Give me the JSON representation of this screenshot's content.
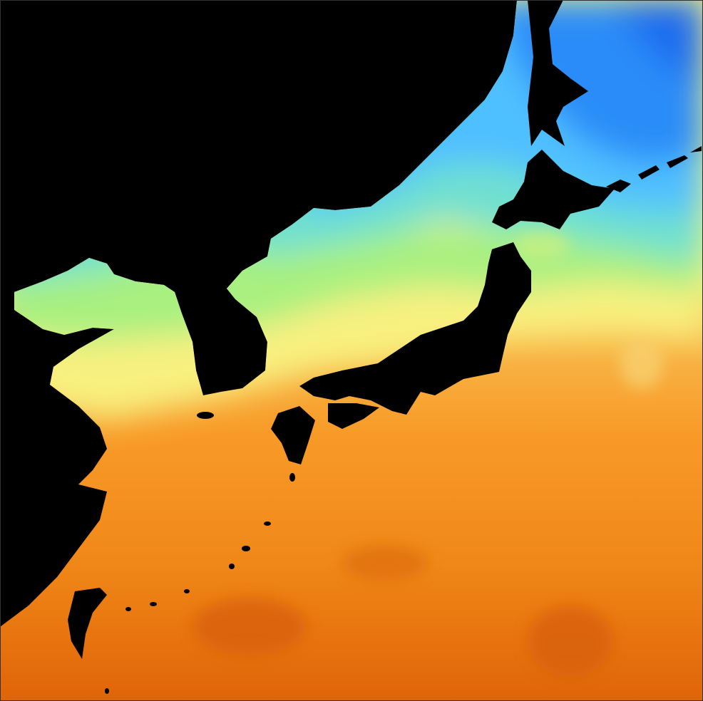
{
  "map": {
    "type": "sea-surface-temperature",
    "land_color": "#000000",
    "palette": {
      "coldest": "#1a6cf0",
      "cold": "#3aa8ff",
      "cool": "#70e0f0",
      "mild": "#90f080",
      "warm": "#f8f080",
      "hot": "#f89a28",
      "hottest": "#e06408"
    }
  }
}
